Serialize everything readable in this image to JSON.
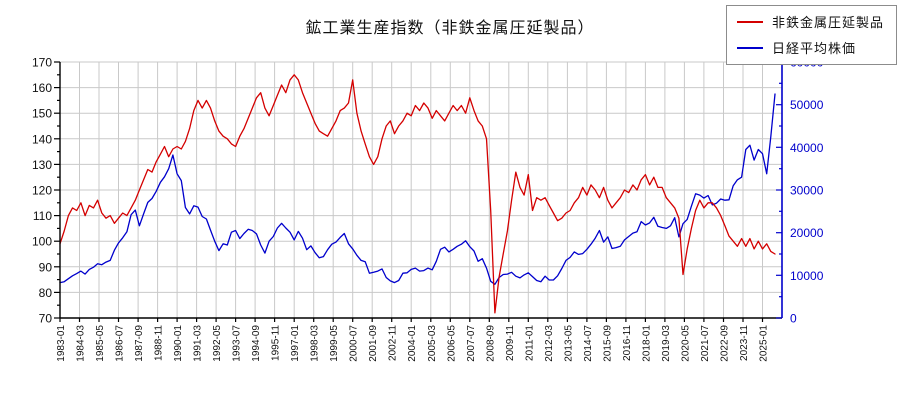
{
  "page": {
    "background": "#ffffff"
  },
  "chart_title": "鉱工業生産指数（非鉄金属圧延製品）",
  "legend": {
    "items": [
      {
        "label": "非鉄金属圧延製品",
        "color": "#d40000"
      },
      {
        "label": "日経平均株価",
        "color": "#0000cc"
      }
    ]
  },
  "chart_data": {
    "type": "line",
    "title": "鉱工業生産指数（非鉄金属圧延製品）",
    "start_month": "1983-01",
    "points_interval_months": 3,
    "x_tick_interval_months": 14,
    "x_tick_labels": [
      "1983-01",
      "1984-03",
      "1985-05",
      "1986-07",
      "1987-09",
      "1988-11",
      "1990-01",
      "1991-03",
      "1992-05",
      "1993-07",
      "1994-09",
      "1995-11",
      "1997-01",
      "1998-03",
      "1999-05",
      "2000-07",
      "2001-09",
      "2002-11",
      "2004-01",
      "2005-03",
      "2006-05",
      "2007-07",
      "2008-09",
      "2009-11",
      "2011-01",
      "2012-03",
      "2013-05",
      "2014-07",
      "2015-09",
      "2016-11",
      "2018-01",
      "2019-03",
      "2020-05",
      "2021-07",
      "2022-09",
      "2023-11",
      "2025-01"
    ],
    "left_axis": {
      "min": 70,
      "max": 170,
      "step": 10,
      "minor_step": 5,
      "color": "#000000",
      "tick_labels": [
        "70",
        "80",
        "90",
        "100",
        "110",
        "120",
        "130",
        "140",
        "150",
        "160",
        "170"
      ]
    },
    "right_axis": {
      "min": 0,
      "max": 60000,
      "step": 10000,
      "minor_step": 5000,
      "color": "#0000cc",
      "tick_labels": [
        "0",
        "10000",
        "20000",
        "30000",
        "40000",
        "50000",
        "60000"
      ]
    },
    "grid": {
      "show": true,
      "color": "#c9c9c9"
    },
    "legend_position": "top-right",
    "series": [
      {
        "name": "非鉄金属圧延製品",
        "axis": "left",
        "color": "#d40000",
        "values": [
          99,
          104,
          110,
          113,
          112,
          115,
          110,
          114,
          113,
          116,
          111,
          109,
          110,
          107,
          109,
          111,
          110,
          113,
          116,
          120,
          124,
          128,
          127,
          131,
          134,
          137,
          133,
          136,
          137,
          136,
          139,
          144,
          151,
          155,
          152,
          155,
          152,
          147,
          143,
          141,
          140,
          138,
          137,
          141,
          144,
          148,
          152,
          156,
          158,
          152,
          149,
          153,
          157,
          161,
          158,
          163,
          165,
          163,
          158,
          154,
          150,
          146,
          143,
          142,
          141,
          144,
          147,
          151,
          152,
          154,
          163,
          150,
          143,
          138,
          133,
          130,
          133,
          140,
          145,
          147,
          142,
          145,
          147,
          150,
          149,
          153,
          151,
          154,
          152,
          148,
          151,
          149,
          147,
          150,
          153,
          151,
          153,
          150,
          156,
          151,
          147,
          145,
          140,
          112,
          72,
          86,
          95,
          104,
          116,
          127,
          121,
          118,
          126,
          112,
          117,
          116,
          117,
          114,
          111,
          108,
          109,
          111,
          112,
          115,
          117,
          121,
          118,
          122,
          120,
          117,
          121,
          116,
          113,
          115,
          117,
          120,
          119,
          122,
          120,
          124,
          126,
          122,
          125,
          121,
          121,
          117,
          115,
          113,
          109,
          87,
          97,
          105,
          112,
          116,
          113,
          115,
          115,
          113,
          110,
          106,
          102,
          100,
          98,
          101,
          98,
          101,
          97,
          100,
          97,
          99,
          96,
          95
        ]
      },
      {
        "name": "日経平均株価",
        "axis": "right",
        "color": "#0000cc",
        "values": [
          8300,
          8500,
          9200,
          9900,
          10400,
          11000,
          10300,
          11400,
          11900,
          12700,
          12500,
          13100,
          13500,
          15900,
          17600,
          18800,
          20200,
          24200,
          25300,
          21600,
          24400,
          27100,
          28000,
          29700,
          31800,
          33100,
          35000,
          38200,
          33800,
          32200,
          25900,
          24400,
          26300,
          26000,
          23800,
          23200,
          20600,
          18000,
          15800,
          17400,
          17100,
          20100,
          20500,
          18600,
          19800,
          20800,
          20500,
          19700,
          17100,
          15200,
          18000,
          19100,
          21100,
          22200,
          21100,
          20100,
          18300,
          20300,
          18700,
          16000,
          16900,
          15300,
          14100,
          14400,
          16000,
          17300,
          17800,
          18900,
          19800,
          17400,
          16200,
          14700,
          13500,
          13200,
          10500,
          10700,
          11000,
          11500,
          9500,
          8700,
          8300,
          8800,
          10500,
          10600,
          11400,
          11700,
          11000,
          11100,
          11700,
          11300,
          13300,
          16100,
          16600,
          15500,
          16100,
          16800,
          17300,
          18100,
          16700,
          15700,
          13300,
          13900,
          11700,
          8600,
          7900,
          9500,
          10200,
          10300,
          10700,
          9800,
          9400,
          10100,
          10600,
          9700,
          8800,
          8500,
          9800,
          8900,
          8900,
          9900,
          11600,
          13500,
          14200,
          15500,
          14900,
          15100,
          16100,
          17300,
          18700,
          20500,
          17800,
          19000,
          16300,
          16500,
          16800,
          18300,
          19100,
          19900,
          20200,
          22600,
          21800,
          22300,
          23600,
          21500,
          21200,
          21000,
          21600,
          23500,
          19000,
          22100,
          23100,
          26200,
          29100,
          28800,
          28100,
          28700,
          26500,
          26900,
          27900,
          27600,
          27700,
          31000,
          32400,
          33000,
          39500,
          40500,
          37000,
          39500,
          38500,
          33800,
          42500,
          52500
        ]
      }
    ]
  }
}
